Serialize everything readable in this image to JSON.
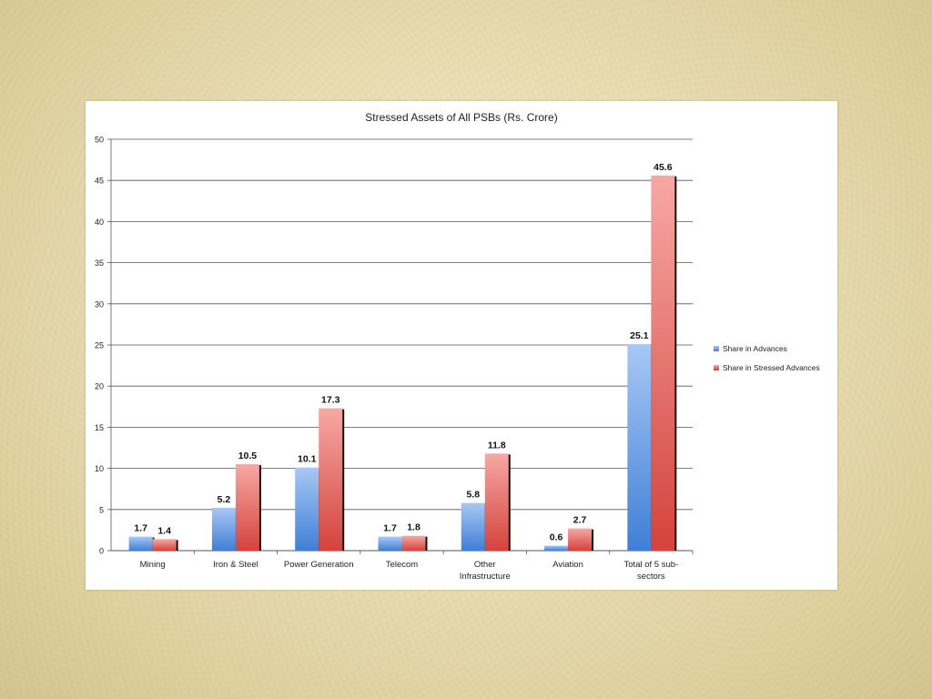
{
  "chart_data": {
    "type": "bar",
    "title": "Stressed Assets of All PSBs (Rs. Crore)",
    "categories": [
      "Mining",
      "Iron & Steel",
      "Power Generation",
      "Telecom",
      "Other\nInfrastructure",
      "Aviation",
      "Total of 5 sub-\nsectors"
    ],
    "series": [
      {
        "name": "Share in Advances",
        "values": [
          1.7,
          5.2,
          10.1,
          1.7,
          5.8,
          0.6,
          25.1
        ],
        "color_top": "#a8c8f5",
        "color_bottom": "#3f7fd6"
      },
      {
        "name": "Share in Stressed Advances",
        "values": [
          1.4,
          10.5,
          17.3,
          1.8,
          11.8,
          2.7,
          45.6
        ],
        "color_top": "#f7a8a4",
        "color_bottom": "#d4433c"
      }
    ],
    "data_labels": [
      [
        "1.7",
        "5.2",
        "10.1",
        "1.7",
        "5.8",
        "0.6",
        "25.1"
      ],
      [
        "1.4",
        "10.5",
        "17.3",
        "1.8",
        "11.8",
        "2.7",
        "45.6"
      ]
    ],
    "ylim": [
      0,
      50
    ],
    "yticks": [
      "0",
      "5",
      "10",
      "15",
      "20",
      "25",
      "30",
      "35",
      "40",
      "45",
      "50"
    ],
    "ytick_values": [
      0,
      5,
      10,
      15,
      20,
      25,
      30,
      35,
      40,
      45,
      50
    ],
    "xlabel": "",
    "ylabel": "",
    "grid": true,
    "legend_position": "right"
  }
}
